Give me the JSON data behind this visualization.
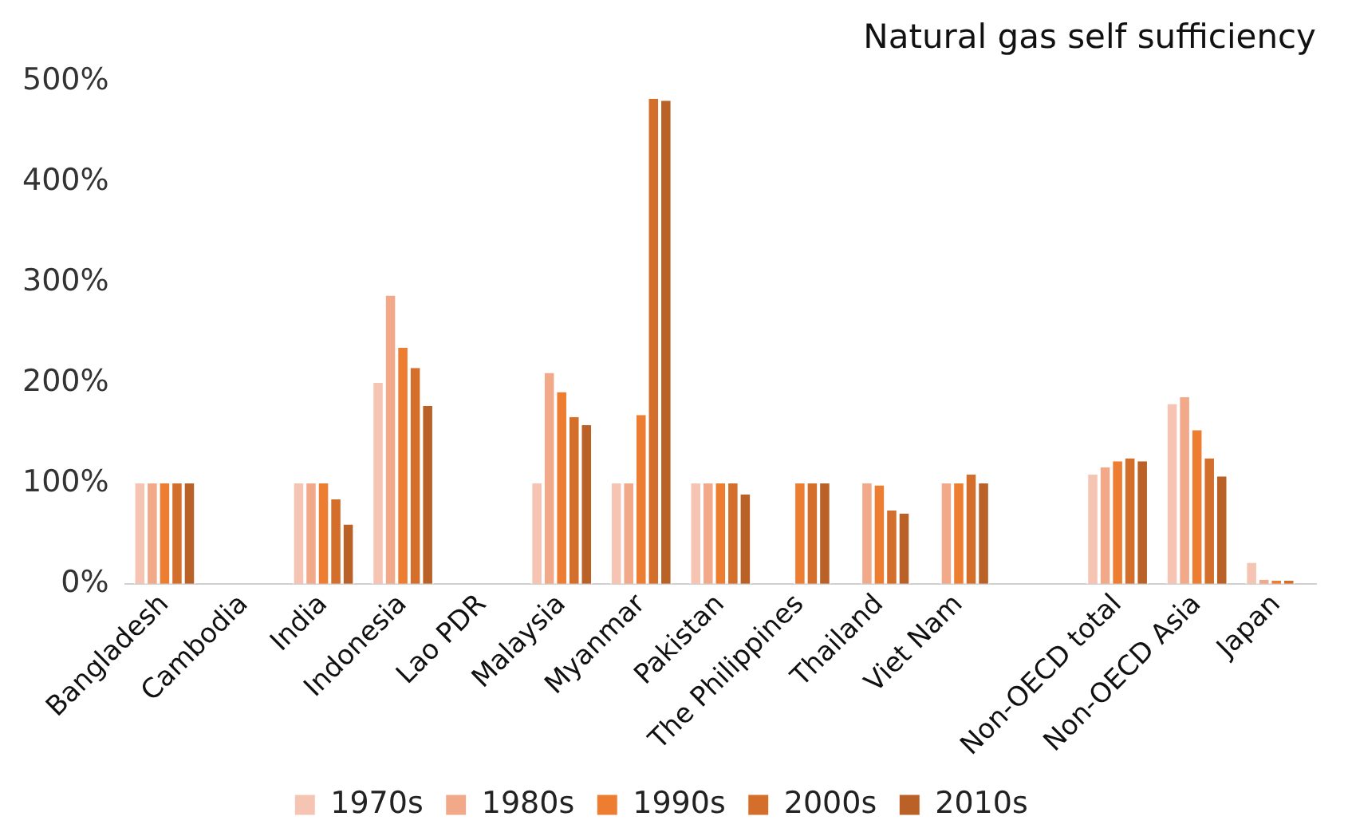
{
  "chart_data": {
    "type": "bar",
    "title": "Natural gas self sufficiency",
    "categories": [
      "Bangladesh",
      "Cambodia",
      "India",
      "Indonesia",
      "Lao PDR",
      "Malaysia",
      "Myanmar",
      "Pakistan",
      "The Philippines",
      "Thailand",
      "Viet Nam",
      null,
      "Non-OECD total",
      "Non-OECD Asia",
      "Japan"
    ],
    "series": [
      {
        "name": "1970s",
        "color": "#f5c4b3",
        "values": [
          100,
          null,
          100,
          200,
          null,
          100,
          100,
          100,
          null,
          null,
          null,
          null,
          109,
          179,
          21
        ]
      },
      {
        "name": "1980s",
        "color": "#f1a98a",
        "values": [
          100,
          null,
          100,
          287,
          null,
          210,
          100,
          100,
          null,
          100,
          100,
          null,
          116,
          186,
          4
        ]
      },
      {
        "name": "1990s",
        "color": "#ed7d31",
        "values": [
          100,
          null,
          100,
          235,
          null,
          191,
          168,
          100,
          100,
          98,
          100,
          null,
          122,
          153,
          3
        ]
      },
      {
        "name": "2000s",
        "color": "#d36f2b",
        "values": [
          100,
          null,
          84,
          215,
          null,
          166,
          483,
          100,
          100,
          73,
          109,
          null,
          125,
          125,
          3
        ]
      },
      {
        "name": "2010s",
        "color": "#b96127",
        "values": [
          100,
          null,
          59,
          177,
          null,
          158,
          481,
          89,
          100,
          70,
          100,
          null,
          122,
          107,
          null
        ]
      }
    ],
    "ylim": [
      0,
      500
    ],
    "yticks": [
      {
        "value": 0,
        "label": "0%"
      },
      {
        "value": 100,
        "label": "100%"
      },
      {
        "value": 200,
        "label": "200%"
      },
      {
        "value": 300,
        "label": "300%"
      },
      {
        "value": 400,
        "label": "400%"
      },
      {
        "value": 500,
        "label": "500%"
      }
    ],
    "grid": false,
    "legend": "bottom"
  }
}
